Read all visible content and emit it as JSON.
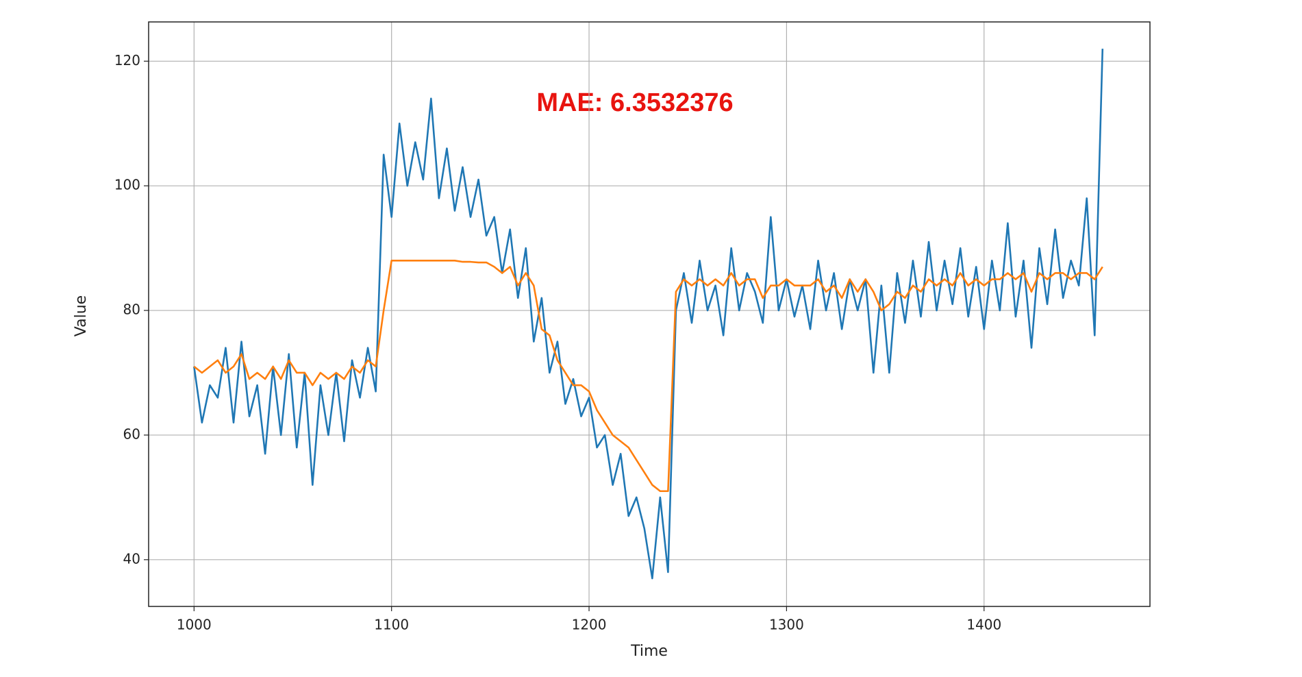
{
  "chart_data": {
    "type": "line",
    "annotation": "MAE: 6.3532376",
    "annotation_color": "#e8140f",
    "x_label": "Time",
    "y_label": "Value",
    "xlim": [
      977,
      1484
    ],
    "ylim": [
      32.5,
      126.3
    ],
    "xticks": [
      1000,
      1100,
      1200,
      1300,
      1400
    ],
    "yticks": [
      40,
      60,
      80,
      100,
      120
    ],
    "grid": true,
    "x": [
      1000,
      1004,
      1008,
      1012,
      1016,
      1020,
      1024,
      1028,
      1032,
      1036,
      1040,
      1044,
      1048,
      1052,
      1056,
      1060,
      1064,
      1068,
      1072,
      1076,
      1080,
      1084,
      1088,
      1092,
      1096,
      1100,
      1104,
      1108,
      1112,
      1116,
      1120,
      1124,
      1128,
      1132,
      1136,
      1140,
      1144,
      1148,
      1152,
      1156,
      1160,
      1164,
      1168,
      1172,
      1176,
      1180,
      1184,
      1188,
      1192,
      1196,
      1200,
      1204,
      1208,
      1212,
      1216,
      1220,
      1224,
      1228,
      1232,
      1236,
      1240,
      1244,
      1248,
      1252,
      1256,
      1260,
      1264,
      1268,
      1272,
      1276,
      1280,
      1284,
      1288,
      1292,
      1296,
      1300,
      1304,
      1308,
      1312,
      1316,
      1320,
      1324,
      1328,
      1332,
      1336,
      1340,
      1344,
      1348,
      1352,
      1356,
      1360,
      1364,
      1368,
      1372,
      1376,
      1380,
      1384,
      1388,
      1392,
      1396,
      1400,
      1404,
      1408,
      1412,
      1416,
      1420,
      1424,
      1428,
      1432,
      1436,
      1440,
      1444,
      1448,
      1452,
      1456,
      1460
    ],
    "series": [
      {
        "color": "#1f77b4",
        "values": [
          71,
          62,
          68,
          66,
          74,
          62,
          75,
          63,
          68,
          57,
          71,
          60,
          73,
          58,
          70,
          52,
          68,
          60,
          70,
          59,
          72,
          66,
          74,
          67,
          105,
          95,
          110,
          100,
          107,
          101,
          114,
          98,
          106,
          96,
          103,
          95,
          101,
          92,
          95,
          86,
          93,
          82,
          90,
          75,
          82,
          70,
          75,
          65,
          69,
          63,
          66,
          58,
          60,
          52,
          57,
          47,
          50,
          45,
          37,
          50,
          38,
          80,
          86,
          78,
          88,
          80,
          84,
          76,
          90,
          80,
          86,
          83,
          78,
          95,
          80,
          85,
          79,
          84,
          77,
          88,
          80,
          86,
          77,
          85,
          80,
          85,
          70,
          84,
          70,
          86,
          78,
          88,
          79,
          91,
          80,
          88,
          81,
          90,
          79,
          87,
          77,
          88,
          80,
          94,
          79,
          88,
          74,
          90,
          81,
          93,
          82,
          88,
          84,
          98,
          76,
          122
        ]
      },
      {
        "color": "#ff7f0e",
        "values": [
          71,
          70,
          71,
          72,
          70,
          71,
          73,
          69,
          70,
          69,
          71,
          69,
          72,
          70,
          70,
          68,
          70,
          69,
          70,
          69,
          71,
          70,
          72,
          71,
          80,
          88,
          88,
          88,
          88,
          88,
          88,
          88,
          88,
          88,
          87.8,
          87.8,
          87.7,
          87.7,
          87,
          86,
          87,
          84,
          86,
          84,
          77,
          76,
          72,
          70,
          68,
          68,
          67,
          64,
          62,
          60,
          59,
          58,
          56,
          54,
          52,
          51,
          51,
          83,
          85,
          84,
          85,
          84,
          85,
          84,
          86,
          84,
          85,
          85,
          82,
          84,
          84,
          85,
          84,
          84,
          84,
          85,
          83,
          84,
          82,
          85,
          83,
          85,
          83,
          80,
          81,
          83,
          82,
          84,
          83,
          85,
          84,
          85,
          84,
          86,
          84,
          85,
          84,
          85,
          85,
          86,
          85,
          86,
          83,
          86,
          85,
          86,
          86,
          85,
          86,
          86,
          85,
          87
        ]
      }
    ]
  }
}
